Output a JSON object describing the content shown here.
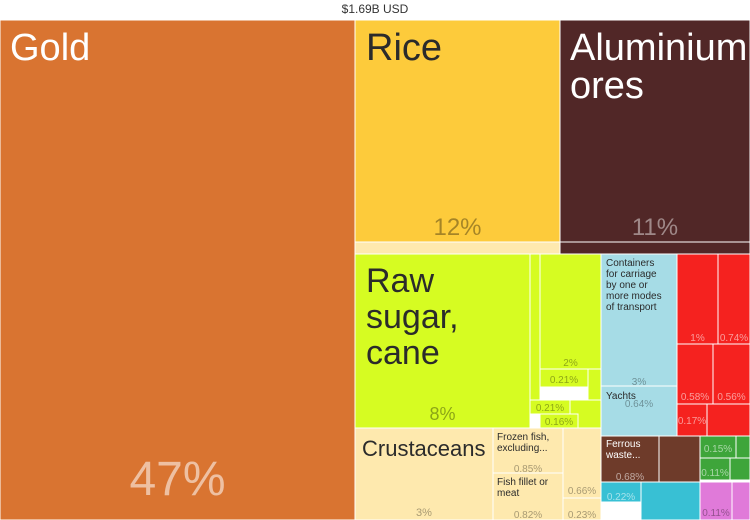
{
  "chart_data": {
    "type": "treemap",
    "title": "$1.69B USD",
    "items": [
      {
        "name": "Gold",
        "value": 47,
        "value_label": "47%",
        "color": "#D97431"
      },
      {
        "name": "Rice",
        "value": 12,
        "value_label": "12%",
        "color": "#FDCB3B"
      },
      {
        "name": "Aluminium ores",
        "value": 11,
        "value_label": "11%",
        "color": "#512727"
      },
      {
        "name": "Raw sugar, cane",
        "value": 8,
        "value_label": "8%",
        "color": "#D6FC22"
      },
      {
        "name": "Crustaceans",
        "value": 3,
        "value_label": "3%",
        "color": "#FEE9AE"
      },
      {
        "name": "Frozen fish, excluding...",
        "value": 0.85,
        "value_label": "0.85%",
        "color": "#FEE9AE"
      },
      {
        "name": "Fish fillet or meat",
        "value": 0.82,
        "value_label": "0.82%",
        "color": "#FEE9AE"
      },
      {
        "name": "",
        "value": 0.66,
        "value_label": "0.66%",
        "color": "#FEE9AE"
      },
      {
        "name": "",
        "value": 0.23,
        "value_label": "0.23%",
        "color": "#FEE9AE"
      },
      {
        "name": "Containers for carriage by one or more modes of transport",
        "value": 3,
        "value_label": "3%",
        "color": "#A6DCE6"
      },
      {
        "name": "Yachts",
        "value": 0.64,
        "value_label": "0.64%",
        "color": "#A6DCE6"
      },
      {
        "name": "Ferrous waste...",
        "value": 0.68,
        "value_label": "0.68%",
        "color": "#6E3B2A"
      },
      {
        "name": "",
        "value": 1,
        "value_label": "1%",
        "color": "#F5221F"
      },
      {
        "name": "",
        "value": 0.74,
        "value_label": "0.74%",
        "color": "#F5221F"
      },
      {
        "name": "",
        "value": 0.58,
        "value_label": "0.58%",
        "color": "#F5221F"
      },
      {
        "name": "",
        "value": 0.56,
        "value_label": "0.56%",
        "color": "#F5221F"
      },
      {
        "name": "",
        "value": 0.17,
        "value_label": "0.17%",
        "color": "#F5221F"
      },
      {
        "name": "",
        "value": 2,
        "value_label": "2%",
        "color": "#D6FC22"
      },
      {
        "name": "",
        "value": 0.21,
        "value_label": "0.21%",
        "color": "#D6FC22"
      },
      {
        "name": "",
        "value": 0.21,
        "value_label": "0.21%",
        "color": "#D6FC22"
      },
      {
        "name": "",
        "value": 0.16,
        "value_label": "0.16%",
        "color": "#D6FC22"
      },
      {
        "name": "",
        "value": 0.22,
        "value_label": "0.22%",
        "color": "#38C0D4"
      },
      {
        "name": "",
        "value": 0.15,
        "value_label": "0.15%",
        "color": "#3EA53A"
      },
      {
        "name": "",
        "value": 0.11,
        "value_label": "0.11%",
        "color": "#3EA53A"
      },
      {
        "name": "",
        "value": 0.11,
        "value_label": "0.11%",
        "color": "#E07AD9"
      }
    ]
  }
}
